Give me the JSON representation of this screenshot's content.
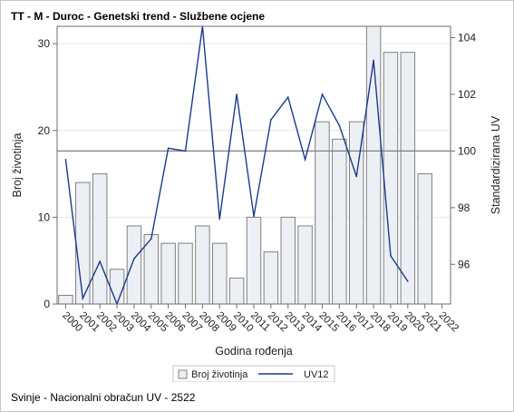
{
  "title": "TT - M - Duroc - Genetski trend - Službene ocjene",
  "footnote": "Svinje - Nacionalni obračun UV - 2522",
  "chart_data": {
    "type": "bar+line",
    "categories": [
      "2000",
      "2001",
      "2002",
      "2003",
      "2004",
      "2005",
      "2006",
      "2007",
      "2008",
      "2009",
      "2010",
      "2011",
      "2012",
      "2013",
      "2014",
      "2015",
      "2016",
      "2017",
      "2018",
      "2019",
      "2020",
      "2021",
      "2022"
    ],
    "series": [
      {
        "name": "Broj životinja",
        "type": "bar",
        "axis": "left",
        "values": [
          1,
          14,
          15,
          4,
          9,
          8,
          7,
          7,
          9,
          7,
          3,
          10,
          6,
          10,
          9,
          21,
          19,
          21,
          32,
          29,
          29,
          15,
          0
        ],
        "color": "#eceff4"
      },
      {
        "name": "UV12",
        "type": "line",
        "axis": "right",
        "values": [
          99.7,
          94.8,
          96.1,
          94.6,
          96.2,
          96.9,
          100.1,
          100.0,
          104.4,
          97.6,
          102.0,
          97.7,
          101.1,
          101.9,
          99.7,
          102.0,
          100.9,
          99.1,
          103.2,
          96.3,
          95.4,
          null,
          null
        ],
        "color": "#1a3a8c"
      }
    ],
    "xlabel": "Godina rođenja",
    "ylabel_left": "Broj životinja",
    "ylabel_right": "Standardizirana UV",
    "ylim_left": [
      0,
      32
    ],
    "yticks_left": [
      0,
      10,
      20,
      30
    ],
    "ylim_right": [
      94.6,
      104.4
    ],
    "yticks_right": [
      96,
      98,
      100,
      102,
      104
    ],
    "reference_line_right": 100,
    "legend": [
      "Broj životinja",
      "UV12"
    ],
    "legend_position": "bottom-center",
    "grid": "horizontal"
  }
}
